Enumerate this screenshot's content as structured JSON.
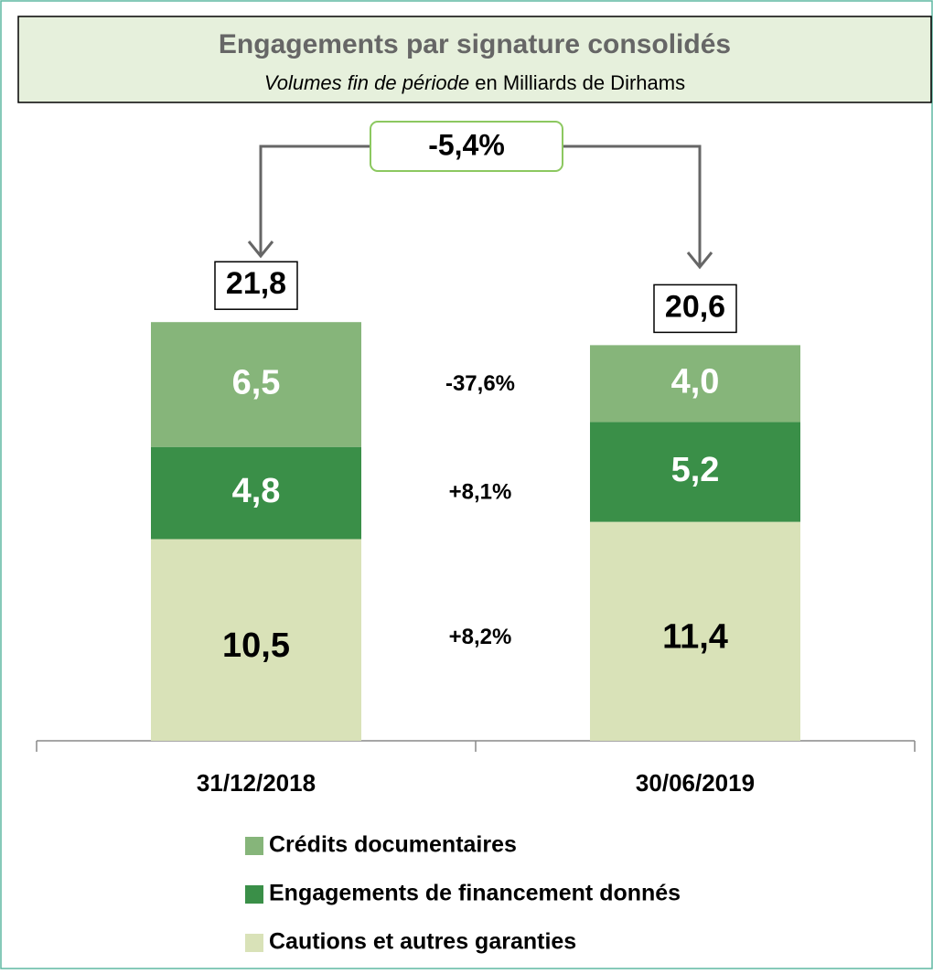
{
  "chart_data": {
    "type": "stacked_bar",
    "title": "Engagements par signature consolidés",
    "subtitle_italic": "Volumes fin de période",
    "subtitle": "en Milliards de Dirhams",
    "categories": [
      "31/12/2018",
      "30/06/2019"
    ],
    "series": [
      {
        "name": "Cautions et autres garanties",
        "color": "#d9e2b8",
        "label_color": "#000000",
        "values": [
          10.5,
          11.4
        ],
        "value_labels": [
          "10,5",
          "11,4"
        ]
      },
      {
        "name": "Engagements de financement donnés",
        "color": "#3a8f48",
        "label_color": "#ffffff",
        "values": [
          4.8,
          5.2
        ],
        "value_labels": [
          "4,8",
          "5,2"
        ]
      },
      {
        "name": "Crédits documentaires",
        "color": "#86b57a",
        "label_color": "#ffffff",
        "values": [
          6.5,
          4.0
        ],
        "value_labels": [
          "6,5",
          "4,0"
        ]
      }
    ],
    "totals": [
      21.8,
      20.6
    ],
    "total_labels": [
      "21,8",
      "20,6"
    ],
    "total_change": "-5,4%",
    "segment_changes": [
      "+8,2%",
      "+8,1%",
      "-37,6%"
    ]
  }
}
